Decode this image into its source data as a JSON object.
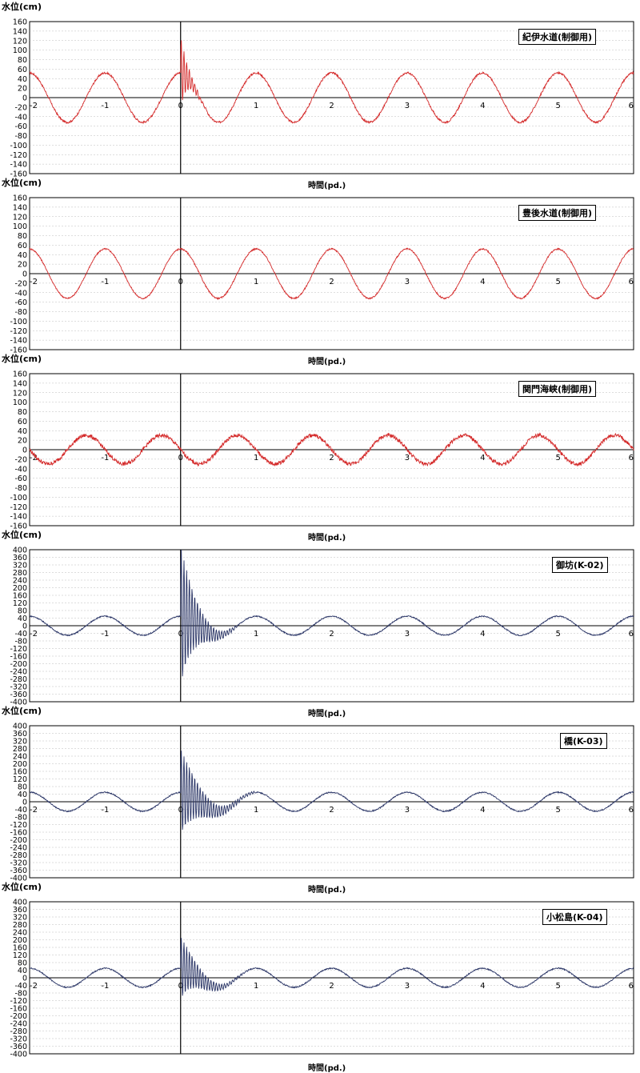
{
  "chart_data": [
    {
      "type": "line",
      "title": "紀伊水道(制御用)",
      "ylabel": "水位(cm)",
      "xlabel": "時間(pd.)",
      "xlim": [
        -2,
        6
      ],
      "ylim": [
        -160,
        160
      ],
      "yticks": [
        160,
        140,
        120,
        100,
        80,
        60,
        40,
        20,
        0,
        -20,
        -40,
        -60,
        -80,
        -100,
        -120,
        -140,
        -160
      ],
      "xticks": [
        -2,
        -1,
        0,
        1,
        2,
        3,
        4,
        5,
        6
      ],
      "grid": true,
      "color": "#d42a2a",
      "series": [
        {
          "amplitude": 52,
          "period": 1,
          "phase": 0,
          "noise": 2,
          "transient": {
            "start": 0,
            "end": 0.35,
            "peak": 80,
            "shift_to": -45
          }
        }
      ]
    },
    {
      "type": "line",
      "title": "豊後水道(制御用)",
      "ylabel": "水位(cm)",
      "xlabel": "時間(pd.)",
      "xlim": [
        -2,
        6
      ],
      "ylim": [
        -160,
        160
      ],
      "yticks": [
        160,
        140,
        120,
        100,
        80,
        60,
        40,
        20,
        0,
        -20,
        -40,
        -60,
        -80,
        -100,
        -120,
        -140,
        -160
      ],
      "xticks": [
        -2,
        -1,
        0,
        1,
        2,
        3,
        4,
        5,
        6
      ],
      "grid": true,
      "color": "#d42a2a",
      "series": [
        {
          "amplitude": 52,
          "period": 1,
          "phase": 0,
          "noise": 1.5
        }
      ]
    },
    {
      "type": "line",
      "title": "関門海峡(制御用)",
      "ylabel": "水位(cm)",
      "xlabel": "時間(pd.)",
      "xlim": [
        -2,
        6
      ],
      "ylim": [
        -160,
        160
      ],
      "yticks": [
        160,
        140,
        120,
        100,
        80,
        60,
        40,
        20,
        0,
        -20,
        -40,
        -60,
        -80,
        -100,
        -120,
        -140,
        -160
      ],
      "xticks": [
        -2,
        -1,
        0,
        1,
        2,
        3,
        4,
        5,
        6
      ],
      "grid": true,
      "color": "#d42a2a",
      "series": [
        {
          "amplitude": 30,
          "period": 1,
          "phase": 0.25,
          "noise": 4
        }
      ]
    },
    {
      "type": "line",
      "title": "御坊(K-02)",
      "ylabel": "水位(cm)",
      "xlabel": "時間(pd.)",
      "xlim": [
        -2,
        6
      ],
      "ylim": [
        -400,
        400
      ],
      "yticks": [
        400,
        360,
        320,
        280,
        240,
        200,
        160,
        120,
        80,
        40,
        0,
        -40,
        -80,
        -120,
        -160,
        -200,
        -240,
        -280,
        -320,
        -360,
        -400
      ],
      "xticks": [
        -2,
        -1,
        0,
        1,
        2,
        3,
        4,
        5,
        6
      ],
      "grid": true,
      "color": "#2a3566",
      "series": [
        {
          "amplitude": 50,
          "period": 1,
          "phase": 0,
          "noise": 3,
          "transient": {
            "start": 0,
            "end": 0.75,
            "peak": 380,
            "shift_to": 0
          }
        }
      ]
    },
    {
      "type": "line",
      "title": "橋(K-03)",
      "ylabel": "水位(cm)",
      "xlabel": "時間(pd.)",
      "xlim": [
        -2,
        6
      ],
      "ylim": [
        -400,
        400
      ],
      "yticks": [
        400,
        360,
        320,
        280,
        240,
        200,
        160,
        120,
        80,
        40,
        0,
        -40,
        -80,
        -120,
        -160,
        -200,
        -240,
        -280,
        -320,
        -360,
        -400
      ],
      "xticks": [
        -2,
        -1,
        0,
        1,
        2,
        3,
        4,
        5,
        6
      ],
      "grid": true,
      "color": "#2a3566",
      "series": [
        {
          "amplitude": 50,
          "period": 1,
          "phase": 0,
          "noise": 3,
          "transient": {
            "start": 0,
            "end": 1.0,
            "peak": 230,
            "shift_to": 0
          }
        }
      ]
    },
    {
      "type": "line",
      "title": "小松島(K-04)",
      "ylabel": "水位(cm)",
      "xlabel": "時間(pd.)",
      "xlim": [
        -2,
        6
      ],
      "ylim": [
        -400,
        400
      ],
      "yticks": [
        400,
        360,
        320,
        280,
        240,
        200,
        160,
        120,
        80,
        40,
        0,
        -40,
        -80,
        -120,
        -160,
        -200,
        -240,
        -280,
        -320,
        -360,
        -400
      ],
      "xticks": [
        -2,
        -1,
        0,
        1,
        2,
        3,
        4,
        5,
        6
      ],
      "grid": true,
      "color": "#2a3566",
      "series": [
        {
          "amplitude": 50,
          "period": 1,
          "phase": 0,
          "noise": 3,
          "transient": {
            "start": 0,
            "end": 0.9,
            "peak": 170,
            "shift_to": 0
          }
        }
      ]
    }
  ]
}
